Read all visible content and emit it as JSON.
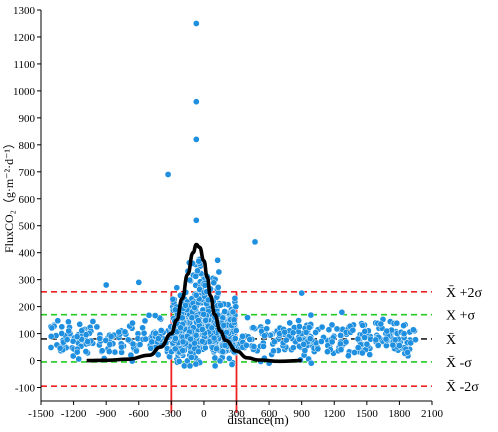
{
  "chart_data": {
    "type": "scatter",
    "xlabel": "distance(m)",
    "ylabel": "FluxCO₂（g·m⁻²·d⁻¹）",
    "xlim": [
      -1500,
      2100
    ],
    "ylim": [
      -150,
      1300
    ],
    "xticks": [
      -1500,
      -1200,
      -900,
      -600,
      -300,
      0,
      300,
      600,
      900,
      1200,
      1500,
      1800,
      2100
    ],
    "yticks": [
      -100,
      0,
      100,
      200,
      300,
      400,
      500,
      600,
      700,
      800,
      900,
      1000,
      1100,
      1200,
      1300
    ],
    "colors": {
      "points": "#1f90e0",
      "points_stroke": "#ffffff",
      "curve": "#000000",
      "mean_line": "#222222",
      "sigma1_lines": "#22cc22",
      "sigma2_lines": "#ee2222",
      "vertical_lines": "#ee2222"
    },
    "reference_lines": [
      {
        "label": "X̄ +2σ",
        "y": 255,
        "style": "dashed",
        "color": "#ee2222"
      },
      {
        "label": "X +σ",
        "y": 170,
        "style": "dashed",
        "color": "#22cc22"
      },
      {
        "label": "X̄",
        "y": 80,
        "style": "dashed",
        "color": "#222222"
      },
      {
        "label": "X̄ -σ",
        "y": -5,
        "style": "dashed",
        "color": "#22cc22"
      },
      {
        "label": "X̄ -2σ",
        "y": -95,
        "style": "dashed",
        "color": "#ee2222"
      }
    ],
    "vertical_lines": [
      -300,
      300
    ],
    "curve": {
      "x": [
        -1080,
        -900,
        -700,
        -500,
        -400,
        -300,
        -250,
        -200,
        -150,
        -100,
        -70,
        -40,
        0,
        30,
        60,
        100,
        150,
        200,
        300,
        400,
        500,
        700,
        900
      ],
      "y": [
        0,
        1,
        5,
        20,
        50,
        100,
        150,
        230,
        320,
        400,
        430,
        420,
        370,
        310,
        240,
        170,
        110,
        75,
        35,
        10,
        2,
        -3,
        0
      ]
    },
    "outliers": {
      "x": [
        -70,
        -70,
        -70,
        -330,
        -70,
        470,
        -900,
        900,
        -600,
        -250
      ],
      "y": [
        1250,
        960,
        820,
        690,
        520,
        440,
        280,
        250,
        290,
        270
      ]
    },
    "cluster_summary": {
      "x_range": [
        -1420,
        1950
      ],
      "dense_x_range": [
        -300,
        300
      ],
      "mean_band": [
        0,
        170
      ]
    }
  }
}
